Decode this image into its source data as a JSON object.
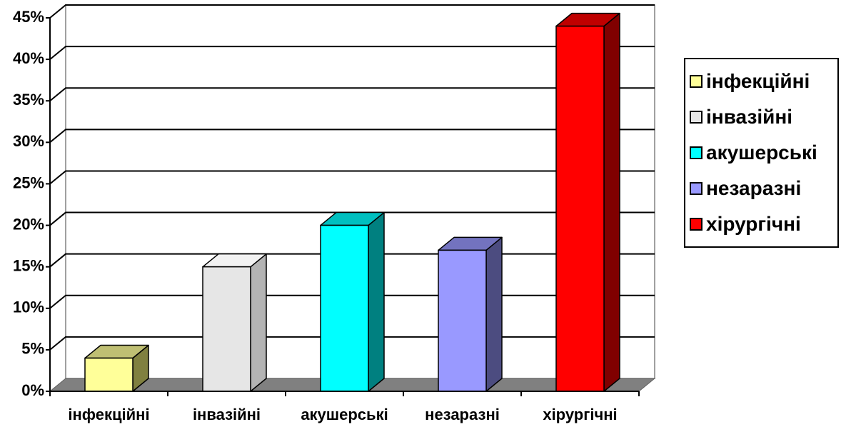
{
  "chart_data": {
    "type": "bar",
    "categories": [
      "інфекційні",
      "інвазійні",
      "акушерські",
      "незаразні",
      "хірургічні"
    ],
    "values": [
      4,
      15,
      20,
      17,
      44
    ],
    "ylim": [
      0,
      45
    ],
    "y_ticks": [
      "0%",
      "5%",
      "10%",
      "15%",
      "20%",
      "25%",
      "30%",
      "35%",
      "40%",
      "45%"
    ],
    "grid": true,
    "style": "3d-column",
    "legend_position": "right",
    "colors": [
      "#FFFF99",
      "#E6E6E6",
      "#00FFFF",
      "#9999FF",
      "#FF0000"
    ],
    "side_colors": [
      "#808040",
      "#B4B4B4",
      "#008080",
      "#4C4C80",
      "#800000"
    ],
    "top_colors": [
      "#BFBF73",
      "#F2F2F2",
      "#00BFBF",
      "#7373BF",
      "#BF0000"
    ]
  },
  "legend": {
    "items": [
      {
        "label": "інфекційні",
        "color": "#FFFF99"
      },
      {
        "label": "інвазійні",
        "color": "#E6E6E6"
      },
      {
        "label": "акушерські",
        "color": "#00FFFF"
      },
      {
        "label": "незаразні",
        "color": "#9999FF"
      },
      {
        "label": "хірургічні",
        "color": "#FF0000"
      }
    ]
  }
}
